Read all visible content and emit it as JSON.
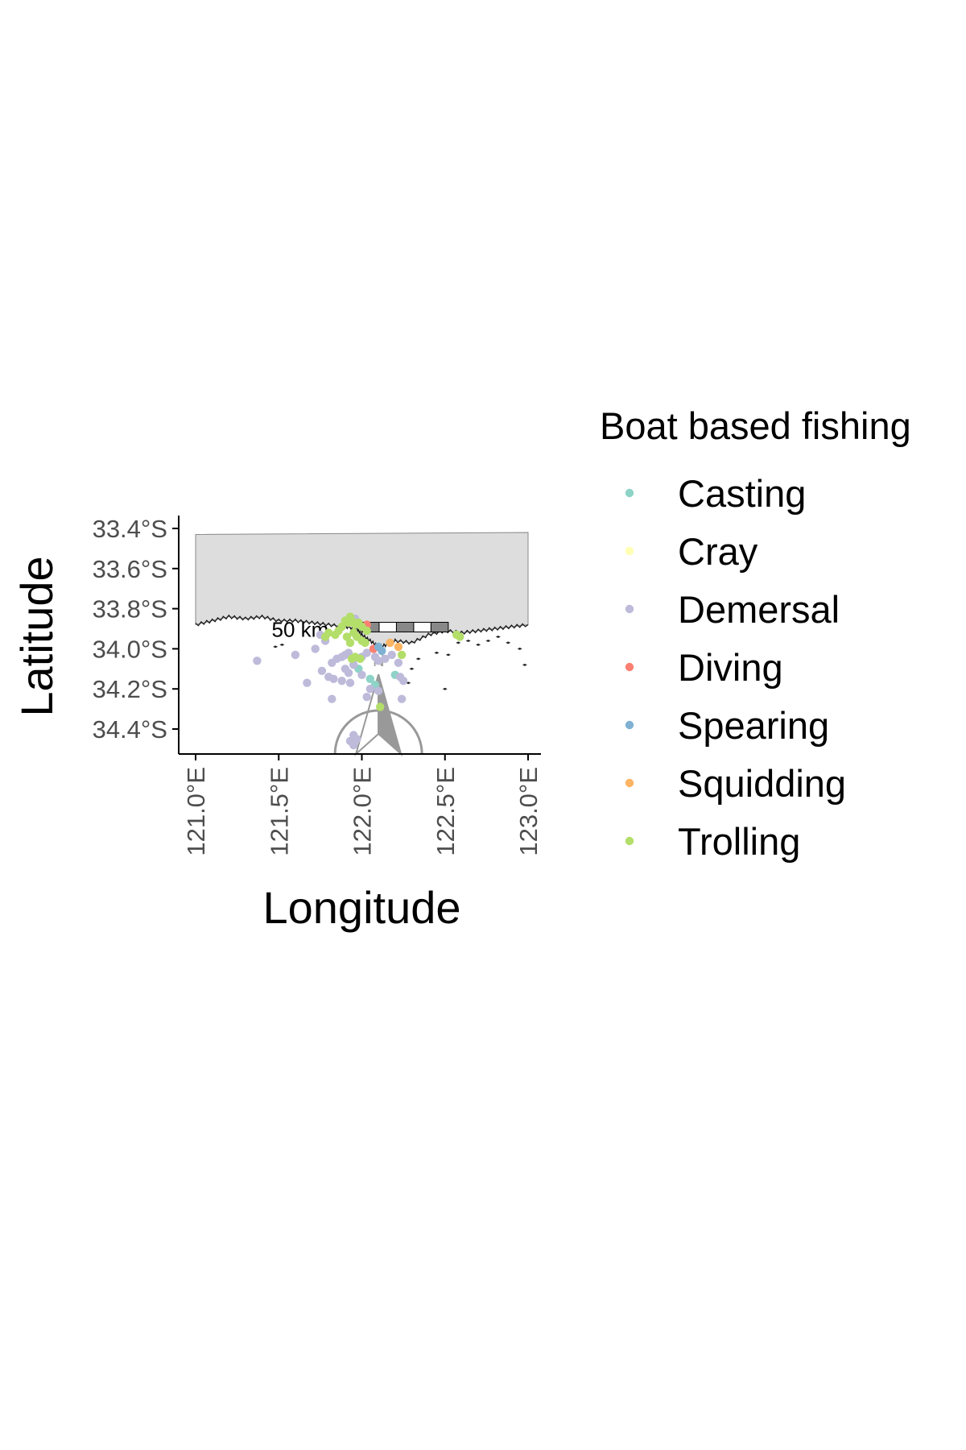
{
  "chart_data": {
    "type": "scatter",
    "title": "",
    "xlabel": "Longitude",
    "ylabel": "Latitude",
    "xlim": [
      120.9,
      123.1
    ],
    "ylim": [
      -34.52,
      -33.37
    ],
    "x_ticks": [
      {
        "value": 121.0,
        "label": "121.0°E"
      },
      {
        "value": 121.5,
        "label": "121.5°E"
      },
      {
        "value": 122.0,
        "label": "122.0°E"
      },
      {
        "value": 122.5,
        "label": "122.5°E"
      },
      {
        "value": 123.0,
        "label": "123.0°E"
      }
    ],
    "y_ticks": [
      {
        "value": -33.4,
        "label": "33.4°S"
      },
      {
        "value": -33.6,
        "label": "33.6°S"
      },
      {
        "value": -33.8,
        "label": "33.8°S"
      },
      {
        "value": -34.0,
        "label": "34.0°S"
      },
      {
        "value": -34.2,
        "label": "34.2°S"
      },
      {
        "value": -34.4,
        "label": "34.4°S"
      }
    ],
    "grid": false,
    "legend": {
      "title": "Boat based fishing",
      "position": "right"
    },
    "land": {
      "fill": "#dddddd",
      "coastline": [
        [
          121.0,
          -33.88
        ],
        [
          121.1,
          -33.86
        ],
        [
          121.2,
          -33.84
        ],
        [
          121.3,
          -33.85
        ],
        [
          121.4,
          -33.84
        ],
        [
          121.5,
          -33.86
        ],
        [
          121.6,
          -33.86
        ],
        [
          121.7,
          -33.87
        ],
        [
          121.8,
          -33.88
        ],
        [
          121.9,
          -33.89
        ],
        [
          121.97,
          -33.9
        ],
        [
          122.0,
          -33.93
        ],
        [
          122.05,
          -33.96
        ],
        [
          122.1,
          -33.99
        ],
        [
          122.15,
          -33.98
        ],
        [
          122.2,
          -33.96
        ],
        [
          122.3,
          -33.97
        ],
        [
          122.4,
          -33.93
        ],
        [
          122.5,
          -33.91
        ],
        [
          122.6,
          -33.92
        ],
        [
          122.7,
          -33.91
        ],
        [
          122.8,
          -33.9
        ],
        [
          122.9,
          -33.89
        ],
        [
          123.0,
          -33.88
        ]
      ],
      "north_bound": [
        [
          121.0,
          -33.43
        ],
        [
          123.0,
          -33.42
        ]
      ]
    },
    "scale_bar": {
      "label": "50 km",
      "lon_start": 122.0,
      "lon_end": 122.52,
      "lat": -33.9
    },
    "north_arrow": {
      "label": "N",
      "lon": 122.1,
      "lat": -34.2
    },
    "series": [
      {
        "name": "Casting",
        "color": "#8dd3c7",
        "points": [
          [
            122.05,
            -34.15
          ],
          [
            122.08,
            -34.18
          ],
          [
            121.98,
            -34.1
          ],
          [
            122.2,
            -34.13
          ]
        ]
      },
      {
        "name": "Cray",
        "color": "#ffffb3",
        "points": []
      },
      {
        "name": "Demersal",
        "color": "#bebada",
        "points": [
          [
            121.37,
            -34.06
          ],
          [
            121.6,
            -34.03
          ],
          [
            121.72,
            -34.0
          ],
          [
            121.78,
            -33.96
          ],
          [
            121.82,
            -34.07
          ],
          [
            121.85,
            -34.05
          ],
          [
            121.88,
            -34.04
          ],
          [
            121.9,
            -34.03
          ],
          [
            121.92,
            -34.02
          ],
          [
            121.95,
            -34.05
          ],
          [
            122.0,
            -34.04
          ],
          [
            122.03,
            -34.02
          ],
          [
            122.08,
            -34.04
          ],
          [
            122.1,
            -34.06
          ],
          [
            122.14,
            -34.05
          ],
          [
            122.18,
            -34.03
          ],
          [
            122.22,
            -34.07
          ],
          [
            121.9,
            -34.1
          ],
          [
            121.92,
            -34.12
          ],
          [
            121.95,
            -34.08
          ],
          [
            121.8,
            -34.14
          ],
          [
            121.83,
            -34.15
          ],
          [
            121.88,
            -34.16
          ],
          [
            121.93,
            -34.17
          ],
          [
            122.0,
            -34.13
          ],
          [
            122.05,
            -34.2
          ],
          [
            122.1,
            -34.21
          ],
          [
            122.23,
            -34.14
          ],
          [
            122.25,
            -34.16
          ],
          [
            121.67,
            -34.17
          ],
          [
            121.76,
            -34.11
          ],
          [
            122.03,
            -34.24
          ],
          [
            121.82,
            -34.25
          ],
          [
            122.24,
            -34.25
          ],
          [
            121.95,
            -34.43
          ],
          [
            121.97,
            -34.45
          ],
          [
            121.93,
            -34.46
          ],
          [
            121.95,
            -34.48
          ],
          [
            121.96,
            -33.85
          ],
          [
            121.75,
            -33.93
          ]
        ]
      },
      {
        "name": "Diving",
        "color": "#fb8072",
        "points": [
          [
            122.03,
            -33.88
          ],
          [
            122.07,
            -34.0
          ]
        ]
      },
      {
        "name": "Spearing",
        "color": "#80b1d3",
        "points": [
          [
            122.1,
            -33.99
          ],
          [
            122.12,
            -34.01
          ]
        ]
      },
      {
        "name": "Squidding",
        "color": "#fdb462",
        "points": [
          [
            122.22,
            -33.99
          ],
          [
            122.17,
            -33.97
          ]
        ]
      },
      {
        "name": "Trolling",
        "color": "#b3de69",
        "points": [
          [
            121.9,
            -33.86
          ],
          [
            121.92,
            -33.87
          ],
          [
            121.94,
            -33.86
          ],
          [
            121.96,
            -33.88
          ],
          [
            121.98,
            -33.87
          ],
          [
            122.0,
            -33.89
          ],
          [
            121.88,
            -33.89
          ],
          [
            121.86,
            -33.91
          ],
          [
            121.84,
            -33.93
          ],
          [
            121.8,
            -33.92
          ],
          [
            121.78,
            -33.94
          ],
          [
            121.91,
            -33.94
          ],
          [
            121.95,
            -33.92
          ],
          [
            121.97,
            -33.94
          ],
          [
            122.0,
            -33.96
          ],
          [
            122.02,
            -33.97
          ],
          [
            121.93,
            -33.97
          ],
          [
            121.99,
            -34.05
          ],
          [
            121.96,
            -34.04
          ],
          [
            121.94,
            -34.05
          ],
          [
            122.24,
            -34.03
          ],
          [
            122.57,
            -33.93
          ],
          [
            122.59,
            -33.94
          ],
          [
            122.11,
            -34.29
          ],
          [
            121.93,
            -33.84
          ],
          [
            122.03,
            -33.91
          ]
        ]
      }
    ]
  }
}
